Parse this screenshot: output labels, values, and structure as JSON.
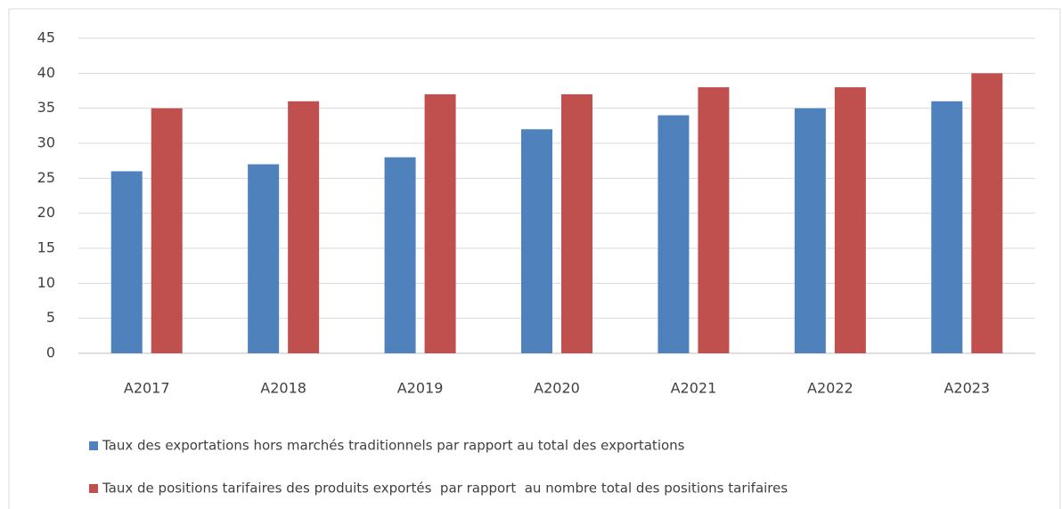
{
  "chart_data": {
    "type": "bar",
    "categories": [
      "A2017",
      "A2018",
      "A2019",
      "A2020",
      "A2021",
      "A2022",
      "A2023"
    ],
    "series": [
      {
        "name": "Taux des exportations hors marchés traditionnels par rapport au total des exportations",
        "color": "#4f81bd",
        "values": [
          26,
          27,
          28,
          32,
          34,
          35,
          36
        ]
      },
      {
        "name": "Taux de positions tarifaires des produits exportés  par rapport  au nombre total des positions tarifaires",
        "color": "#c0504d",
        "values": [
          35,
          36,
          37,
          37,
          38,
          38,
          40
        ]
      }
    ],
    "ylim": [
      0,
      45
    ],
    "yticks": [
      0,
      5,
      10,
      15,
      20,
      25,
      30,
      35,
      40,
      45
    ],
    "grid": true,
    "legend": "bottom"
  }
}
